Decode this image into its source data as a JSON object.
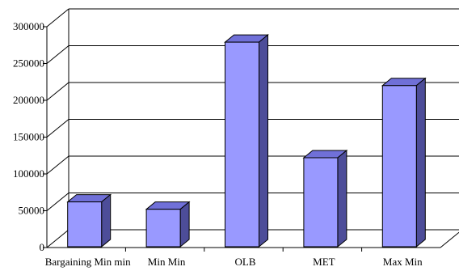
{
  "chart_data": {
    "type": "bar",
    "categories": [
      "Bargaining  Min  min",
      "Min  Min",
      "OLB",
      "MET",
      "Max  Min"
    ],
    "values": [
      62000,
      52000,
      279000,
      122000,
      220000
    ],
    "ylim": [
      0,
      300000
    ],
    "yticks": [
      0,
      50000,
      100000,
      150000,
      200000,
      250000,
      300000
    ],
    "grid": true,
    "legend": "none",
    "bar_colors": {
      "front": "#9999ff",
      "top": "#7070d8",
      "side": "#4d4d99"
    },
    "title": "",
    "xlabel": "",
    "ylabel": ""
  }
}
